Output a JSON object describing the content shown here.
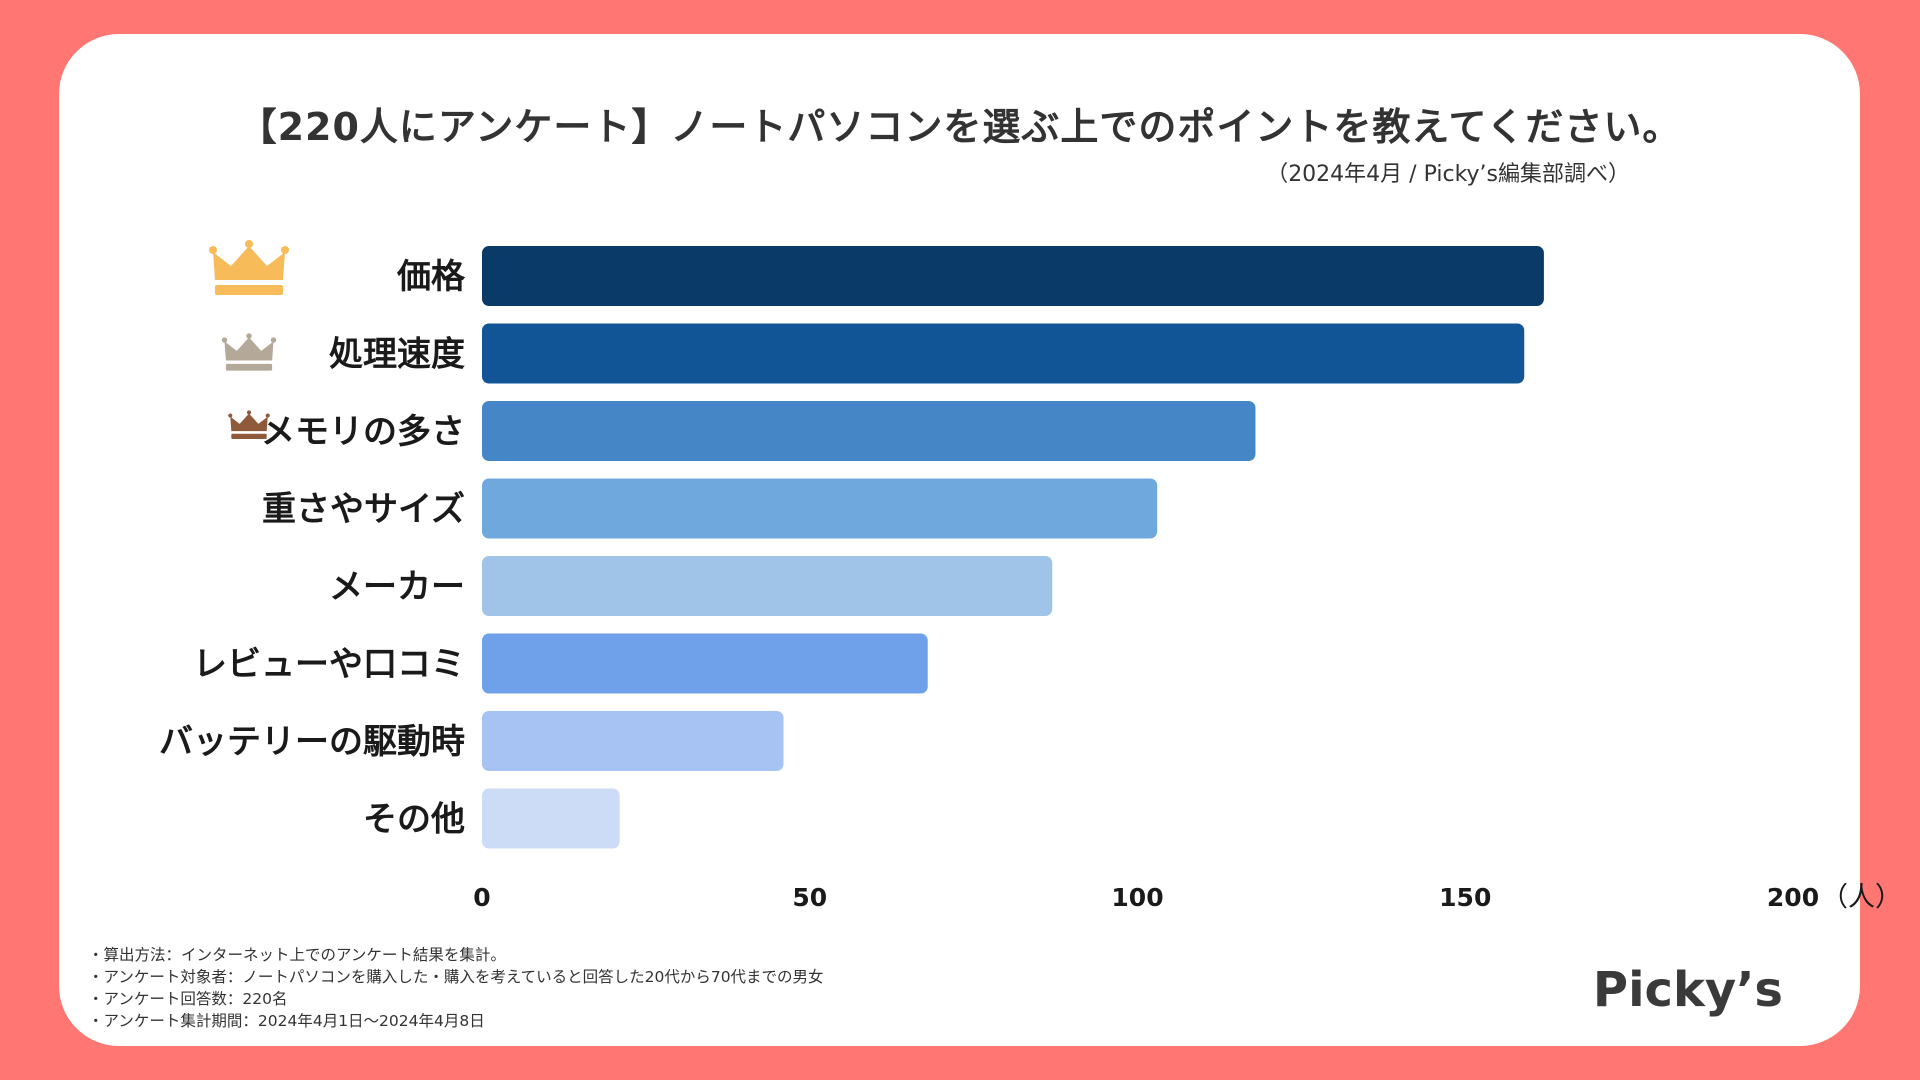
{
  "title": "【220人にアンケート】ノートパソコンを選ぶ上でのポイントを教えてください。",
  "subtitle": "（2024年4月 / Picky’s編集部調べ）",
  "chart_data": {
    "type": "bar",
    "orientation": "horizontal",
    "categories": [
      "価格",
      "処理速度",
      "メモリの多さ",
      "重さやサイズ",
      "メーカー",
      "レビューや口コミ",
      "バッテリーの駆動時",
      "その他"
    ],
    "values": [
      162,
      159,
      118,
      103,
      87,
      68,
      46,
      21
    ],
    "colors": [
      "#0A3A67",
      "#115597",
      "#4586C7",
      "#6FA8DC",
      "#A0C4E8",
      "#6FA0EA",
      "#A7C3F4",
      "#CCDCF7"
    ],
    "crowns": [
      {
        "rank": 1,
        "color": "#F7BC59"
      },
      {
        "rank": 2,
        "color": "#B4A899"
      },
      {
        "rank": 3,
        "color": "#8F5A3A"
      }
    ],
    "x_ticks": [
      0,
      50,
      100,
      150,
      200
    ],
    "xlim": [
      0,
      200
    ],
    "unit": "（人）",
    "grid": false
  },
  "notes": [
    "・算出方法：インターネット上でのアンケート結果を集計。",
    "・アンケート対象者：ノートパソコンを購入した・購入を考えていると回答した20代から70代までの男女",
    "・アンケート回答数：220名",
    "・アンケート集計期間：2024年4月1日〜2024年4月8日"
  ],
  "logo": "Picky’s"
}
